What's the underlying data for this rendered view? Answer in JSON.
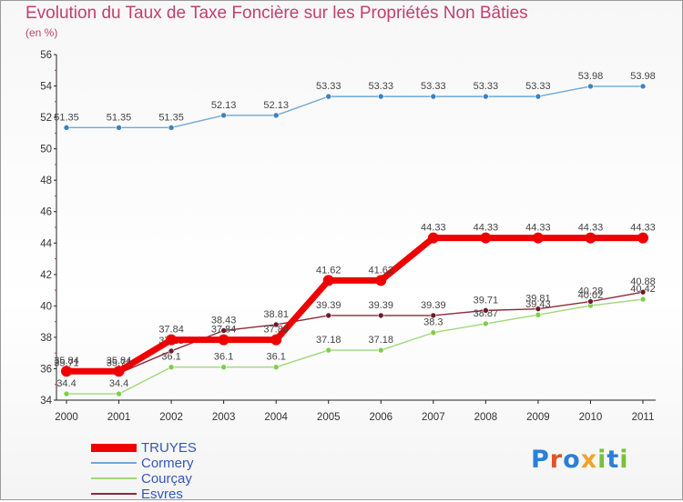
{
  "header": {
    "title": "Evolution du Taux de Taxe Foncière sur les Propriétés Non Bâties",
    "unit": "(en %)"
  },
  "logo": {
    "text": "Proxiti",
    "letters": [
      "P",
      "r",
      "o",
      "x",
      "i",
      "t",
      "i"
    ],
    "colors": [
      "#2b7fd6",
      "#e0542a",
      "#2b7fd6",
      "#f0a32a",
      "#7bbf3a",
      "#2b7fd6",
      "#7bbf3a"
    ]
  },
  "chart_data": {
    "type": "line",
    "title": "Evolution du Taux de Taxe Foncière sur les Propriétés Non Bâties",
    "ylabel": "(en %)",
    "ylim": [
      34,
      56
    ],
    "yticks": [
      34,
      36,
      38,
      40,
      42,
      44,
      46,
      48,
      50,
      52,
      54,
      56
    ],
    "categories": [
      "2000",
      "2001",
      "2002",
      "2003",
      "2004",
      "2005",
      "2006",
      "2007",
      "2008",
      "2009",
      "2010",
      "2011"
    ],
    "series": [
      {
        "name": "Cormery",
        "color": "#6fa8d4",
        "marker": "#3a82c4",
        "values": [
          51.35,
          51.35,
          51.35,
          52.13,
          52.13,
          53.33,
          53.33,
          53.33,
          53.33,
          53.33,
          53.98,
          53.98
        ],
        "labels": [
          "51.35",
          "51.35",
          "51.35",
          "52.13",
          "52.13",
          "53.33",
          "53.33",
          "53.33",
          "53.33",
          "53.33",
          "53.98",
          "53.98"
        ]
      },
      {
        "name": "Courçay",
        "color": "#9fd878",
        "marker": "#7ccf4a",
        "values": [
          34.4,
          34.4,
          36.1,
          36.1,
          36.1,
          37.18,
          37.18,
          38.3,
          38.87,
          39.43,
          40.02,
          40.42
        ],
        "labels": [
          "34.4",
          "34.4",
          "36.1",
          "36.1",
          "36.1",
          "37.18",
          "37.18",
          "38.3",
          "38.87",
          "39.43",
          "40.02",
          "40.42"
        ]
      },
      {
        "name": "Esvres",
        "color": "#8b2a3a",
        "marker": "#6e1a26",
        "values": [
          35.71,
          35.71,
          37.13,
          38.43,
          38.81,
          39.39,
          39.39,
          39.39,
          39.71,
          39.81,
          40.28,
          40.88
        ],
        "labels": [
          "35.71",
          "35.71",
          "37.13",
          "38.43",
          "38.81",
          "39.39",
          "39.39",
          "39.39",
          "39.71",
          "39.81",
          "40.28",
          "40.88"
        ]
      },
      {
        "name": "TRUYES",
        "color": "#ee0000",
        "marker": "#ee0000",
        "values": [
          35.84,
          35.84,
          37.84,
          37.84,
          37.84,
          41.62,
          41.62,
          44.33,
          44.33,
          44.33,
          44.33,
          44.33
        ],
        "labels": [
          "35.84",
          "35.84",
          "37.84",
          "37.84",
          "37.84",
          "41.62",
          "41.62",
          "44.33",
          "44.33",
          "44.33",
          "44.33",
          "44.33"
        ]
      }
    ]
  },
  "legend": {
    "items": [
      {
        "name": "TRUYES",
        "color": "#ee0000",
        "thickness": 9
      },
      {
        "name": "Cormery",
        "color": "#6fa8d4",
        "thickness": 2
      },
      {
        "name": "Courçay",
        "color": "#9fd878",
        "thickness": 2
      },
      {
        "name": "Esvres",
        "color": "#8b2a3a",
        "thickness": 2
      }
    ]
  }
}
